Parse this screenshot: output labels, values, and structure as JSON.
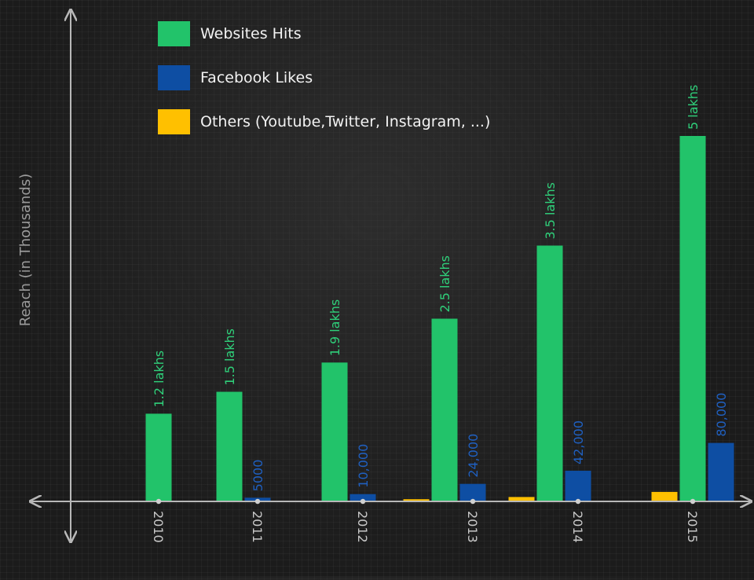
{
  "chart_data": {
    "type": "bar",
    "ylabel": "Reach (in Thousands)",
    "xlabel": "",
    "categories": [
      "2010",
      "2011",
      "2012",
      "2013",
      "2014",
      "2015"
    ],
    "ylim": [
      0,
      600
    ],
    "grid": false,
    "legend_position": "top-left",
    "series": [
      {
        "name": "Websites Hits",
        "color": "#22c36a",
        "label_color": "#2fd07a",
        "values": [
          120,
          150,
          190,
          250,
          350,
          500
        ],
        "labels": [
          "1.2 lakhs",
          "1.5 lakhs",
          "1.9 lakhs",
          "2.5 lakhs",
          "3.5 lakhs",
          "5  lakhs"
        ]
      },
      {
        "name": "Facebook Likes",
        "color": "#0e4ea3",
        "label_color": "#1f5fbf",
        "values": [
          null,
          5,
          10,
          24,
          42,
          80
        ],
        "labels": [
          null,
          "5000",
          "10,000",
          "24,000",
          "42,000",
          "80,000"
        ]
      },
      {
        "name": "Others (Youtube,Twitter, Instagram, ...)",
        "color": "#ffc000",
        "values": [
          null,
          null,
          null,
          3,
          6,
          13
        ]
      }
    ]
  }
}
